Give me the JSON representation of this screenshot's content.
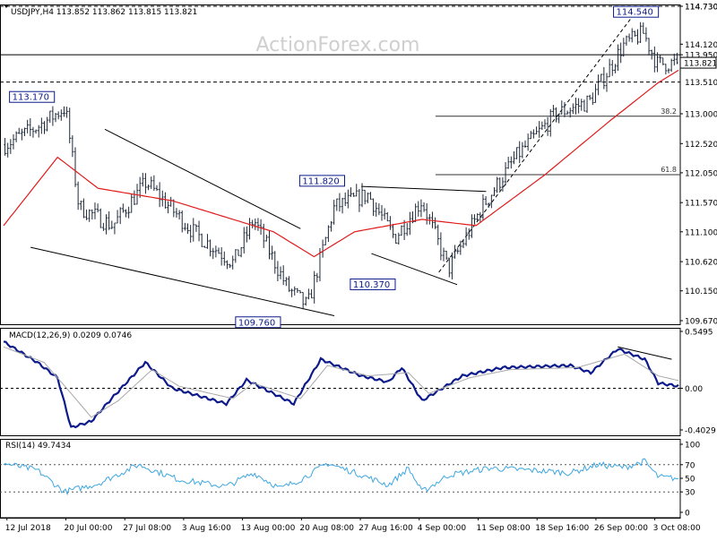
{
  "colors": {
    "background": "#ffffff",
    "frame": "#000000",
    "bar": "#1f2a3a",
    "ma": "#e01b1b",
    "macd": "#0c1a8a",
    "signal": "#a8a8a8",
    "rsi": "#3fa7e0",
    "trendline": "#000000",
    "watermark": "#cfcfcf",
    "label_border": "#0c1a8a"
  },
  "watermark": "ActionForex.com",
  "chart_data": [
    {
      "type": "candlestick",
      "panel": "price",
      "title": "USDJPY,H4  113.852 113.862 113.815 113.821",
      "ylim": [
        109.67,
        114.73
      ],
      "yticks": [
        "114.730",
        "114.120",
        "113.950",
        "113.000",
        "112.520",
        "112.050",
        "111.570",
        "111.100",
        "110.620",
        "110.150",
        "109.670"
      ],
      "current_price": "113.821",
      "x_labels": [
        "12 Jul 2018",
        "20 Jul 00:00",
        "27 Jul 08:00",
        "3 Aug 16:00",
        "13 Aug 00:00",
        "20 Aug 08:00",
        "27 Aug 16:00",
        "4 Sep 00:00",
        "11 Sep 08:00",
        "18 Sep 16:00",
        "26 Sep 00:00",
        "3 Oct 08:00"
      ],
      "anchors": [
        {
          "t": 0,
          "v": 112.5
        },
        {
          "t": 0.05,
          "v": 112.8
        },
        {
          "t": 0.09,
          "v": 113.1
        },
        {
          "t": 0.11,
          "v": 111.5
        },
        {
          "t": 0.16,
          "v": 111.2
        },
        {
          "t": 0.21,
          "v": 111.9
        },
        {
          "t": 0.28,
          "v": 111.1
        },
        {
          "t": 0.34,
          "v": 110.6
        },
        {
          "t": 0.37,
          "v": 111.3
        },
        {
          "t": 0.42,
          "v": 110.2
        },
        {
          "t": 0.45,
          "v": 109.9
        },
        {
          "t": 0.49,
          "v": 111.5
        },
        {
          "t": 0.54,
          "v": 111.7
        },
        {
          "t": 0.58,
          "v": 111.0
        },
        {
          "t": 0.62,
          "v": 111.6
        },
        {
          "t": 0.66,
          "v": 110.5
        },
        {
          "t": 0.71,
          "v": 111.5
        },
        {
          "t": 0.76,
          "v": 112.3
        },
        {
          "t": 0.82,
          "v": 113.0
        },
        {
          "t": 0.87,
          "v": 113.2
        },
        {
          "t": 0.92,
          "v": 114.1
        },
        {
          "t": 0.95,
          "v": 114.3
        },
        {
          "t": 0.97,
          "v": 113.8
        },
        {
          "t": 1.0,
          "v": 113.82
        }
      ],
      "ma_anchors": [
        {
          "t": 0,
          "v": 111.2
        },
        {
          "t": 0.08,
          "v": 112.3
        },
        {
          "t": 0.14,
          "v": 111.8
        },
        {
          "t": 0.25,
          "v": 111.6
        },
        {
          "t": 0.4,
          "v": 111.1
        },
        {
          "t": 0.46,
          "v": 110.7
        },
        {
          "t": 0.52,
          "v": 111.1
        },
        {
          "t": 0.62,
          "v": 111.3
        },
        {
          "t": 0.7,
          "v": 111.2
        },
        {
          "t": 0.8,
          "v": 112.0
        },
        {
          "t": 0.9,
          "v": 112.9
        },
        {
          "t": 0.97,
          "v": 113.5
        },
        {
          "t": 1.0,
          "v": 113.7
        }
      ],
      "annotations": [
        {
          "label": "114.540",
          "t": 0.965,
          "v": 114.54
        },
        {
          "label": "113.170",
          "t": 0.07,
          "v": 113.17
        },
        {
          "label": "111.820",
          "t": 0.5,
          "v": 111.82
        },
        {
          "label": "110.370",
          "t": 0.575,
          "v": 110.37
        },
        {
          "label": "109.760",
          "t": 0.405,
          "v": 109.76
        }
      ],
      "hlines": [
        {
          "label": "114.730",
          "v": 114.73,
          "style": "dashed"
        },
        {
          "label": "113.510",
          "v": 113.51,
          "style": "dashed"
        },
        {
          "label": "",
          "v": 113.95,
          "style": "solid"
        }
      ],
      "fib_levels": [
        {
          "label": "38.2",
          "v": 112.96
        },
        {
          "label": "61.8",
          "v": 112.02
        }
      ]
    },
    {
      "type": "line",
      "panel": "macd",
      "title": "MACD(12,26,9) 0.0209 0.0746",
      "ylim": [
        -0.4029,
        0.5495
      ],
      "yticks": [
        "0.5495",
        "0.00",
        "-0.4029"
      ],
      "series": [
        {
          "name": "MACD",
          "anchors": [
            {
              "t": 0,
              "v": 0.45
            },
            {
              "t": 0.05,
              "v": 0.25
            },
            {
              "t": 0.08,
              "v": 0.1
            },
            {
              "t": 0.1,
              "v": -0.38
            },
            {
              "t": 0.13,
              "v": -0.32
            },
            {
              "t": 0.16,
              "v": -0.1
            },
            {
              "t": 0.21,
              "v": 0.25
            },
            {
              "t": 0.25,
              "v": 0.0
            },
            {
              "t": 0.33,
              "v": -0.15
            },
            {
              "t": 0.36,
              "v": 0.08
            },
            {
              "t": 0.43,
              "v": -0.15
            },
            {
              "t": 0.47,
              "v": 0.28
            },
            {
              "t": 0.53,
              "v": 0.12
            },
            {
              "t": 0.57,
              "v": 0.06
            },
            {
              "t": 0.59,
              "v": 0.2
            },
            {
              "t": 0.62,
              "v": -0.12
            },
            {
              "t": 0.68,
              "v": 0.12
            },
            {
              "t": 0.74,
              "v": 0.2
            },
            {
              "t": 0.84,
              "v": 0.22
            },
            {
              "t": 0.87,
              "v": 0.15
            },
            {
              "t": 0.91,
              "v": 0.38
            },
            {
              "t": 0.95,
              "v": 0.28
            },
            {
              "t": 0.97,
              "v": 0.05
            },
            {
              "t": 1.0,
              "v": 0.0209
            }
          ]
        },
        {
          "name": "Signal",
          "anchors": [
            {
              "t": 0,
              "v": 0.4
            },
            {
              "t": 0.06,
              "v": 0.25
            },
            {
              "t": 0.1,
              "v": -0.05
            },
            {
              "t": 0.13,
              "v": -0.28
            },
            {
              "t": 0.17,
              "v": -0.12
            },
            {
              "t": 0.22,
              "v": 0.18
            },
            {
              "t": 0.26,
              "v": 0.02
            },
            {
              "t": 0.34,
              "v": -0.1
            },
            {
              "t": 0.37,
              "v": 0.05
            },
            {
              "t": 0.44,
              "v": -0.1
            },
            {
              "t": 0.48,
              "v": 0.22
            },
            {
              "t": 0.54,
              "v": 0.12
            },
            {
              "t": 0.6,
              "v": 0.15
            },
            {
              "t": 0.63,
              "v": -0.05
            },
            {
              "t": 0.69,
              "v": 0.1
            },
            {
              "t": 0.75,
              "v": 0.18
            },
            {
              "t": 0.85,
              "v": 0.2
            },
            {
              "t": 0.92,
              "v": 0.33
            },
            {
              "t": 0.97,
              "v": 0.12
            },
            {
              "t": 1.0,
              "v": 0.0746
            }
          ]
        }
      ]
    },
    {
      "type": "line",
      "panel": "rsi",
      "title": "RSI(14) 49.7434",
      "ylim": [
        0,
        100
      ],
      "yticks": [
        "100",
        "70",
        "50",
        "30",
        "0"
      ],
      "levels": [
        70,
        30
      ],
      "series": [
        {
          "name": "RSI",
          "anchors": [
            {
              "t": 0,
              "v": 72
            },
            {
              "t": 0.05,
              "v": 62
            },
            {
              "t": 0.09,
              "v": 30
            },
            {
              "t": 0.14,
              "v": 42
            },
            {
              "t": 0.2,
              "v": 70
            },
            {
              "t": 0.26,
              "v": 48
            },
            {
              "t": 0.33,
              "v": 38
            },
            {
              "t": 0.37,
              "v": 58
            },
            {
              "t": 0.41,
              "v": 35
            },
            {
              "t": 0.44,
              "v": 48
            },
            {
              "t": 0.48,
              "v": 72
            },
            {
              "t": 0.53,
              "v": 55
            },
            {
              "t": 0.57,
              "v": 40
            },
            {
              "t": 0.6,
              "v": 65
            },
            {
              "t": 0.62,
              "v": 30
            },
            {
              "t": 0.66,
              "v": 55
            },
            {
              "t": 0.72,
              "v": 65
            },
            {
              "t": 0.78,
              "v": 62
            },
            {
              "t": 0.84,
              "v": 58
            },
            {
              "t": 0.88,
              "v": 70
            },
            {
              "t": 0.92,
              "v": 66
            },
            {
              "t": 0.95,
              "v": 75
            },
            {
              "t": 0.97,
              "v": 52
            },
            {
              "t": 1.0,
              "v": 49.7434
            }
          ]
        }
      ]
    }
  ]
}
